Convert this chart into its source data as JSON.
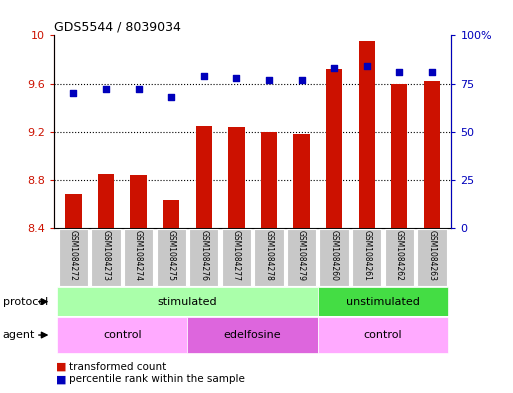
{
  "title": "GDS5544 / 8039034",
  "samples": [
    "GSM1084272",
    "GSM1084273",
    "GSM1084274",
    "GSM1084275",
    "GSM1084276",
    "GSM1084277",
    "GSM1084278",
    "GSM1084279",
    "GSM1084260",
    "GSM1084261",
    "GSM1084262",
    "GSM1084263"
  ],
  "transformed_count": [
    8.68,
    8.85,
    8.84,
    8.63,
    9.25,
    9.24,
    9.2,
    9.18,
    9.72,
    9.95,
    9.6,
    9.62
  ],
  "percentile_rank": [
    70,
    72,
    72,
    68,
    79,
    78,
    77,
    77,
    83,
    84,
    81,
    81
  ],
  "ylim_left": [
    8.4,
    10.0
  ],
  "ylim_right": [
    0,
    100
  ],
  "yticks_left": [
    8.4,
    8.8,
    9.2,
    9.6,
    10.0
  ],
  "ytick_labels_left": [
    "8.4",
    "8.8",
    "9.2",
    "9.6",
    "10"
  ],
  "yticks_right": [
    0,
    25,
    50,
    75,
    100
  ],
  "ytick_labels_right": [
    "0",
    "25",
    "50",
    "75",
    "100%"
  ],
  "bar_color": "#CC1100",
  "dot_color": "#0000BB",
  "bar_bottom": 8.4,
  "protocol_groups": [
    {
      "label": "stimulated",
      "start": 0,
      "end": 7,
      "color": "#AAFFAA"
    },
    {
      "label": "unstimulated",
      "start": 8,
      "end": 11,
      "color": "#44DD44"
    }
  ],
  "agent_groups": [
    {
      "label": "control",
      "start": 0,
      "end": 3,
      "color": "#FFAAFF"
    },
    {
      "label": "edelfosine",
      "start": 4,
      "end": 7,
      "color": "#DD66DD"
    },
    {
      "label": "control",
      "start": 8,
      "end": 11,
      "color": "#FFAAFF"
    }
  ],
  "legend_bar_label": "transformed count",
  "legend_dot_label": "percentile rank within the sample",
  "protocol_label": "protocol",
  "agent_label": "agent",
  "bg_color": "#FFFFFF",
  "tick_area_color": "#C8C8C8",
  "bar_width": 0.5
}
